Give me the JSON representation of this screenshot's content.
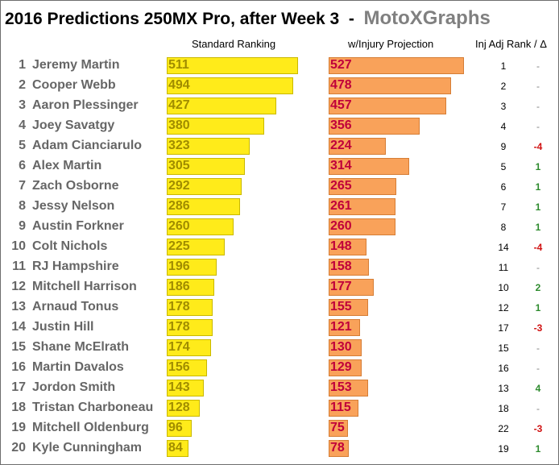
{
  "title": "2016 Predictions 250MX Pro, after Week 3",
  "title_separator": "-",
  "brand": "MotoXGraphs",
  "colors": {
    "standard_bar": "#ffeb1a",
    "standard_text": "#a08c00",
    "injury_bar": "#f9a25a",
    "injury_text": "#c0003a",
    "delta_up": "#2e8b2e",
    "delta_down": "#d01010",
    "delta_none": "#808080",
    "name_text": "#666666"
  },
  "chart_data": {
    "type": "bar",
    "orientation": "horizontal",
    "title": "2016 Predictions 250MX Pro, after Week 3",
    "columns": [
      "Standard Ranking",
      "w/Injury Projection",
      "Inj Adj Rank / Δ"
    ],
    "categories": [
      "Jeremy Martin",
      "Cooper Webb",
      "Aaron Plessinger",
      "Joey Savatgy",
      "Adam Cianciarulo",
      "Alex Martin",
      "Zach Osborne",
      "Jessy Nelson",
      "Austin Forkner",
      "Colt Nichols",
      "RJ Hampshire",
      "Mitchell Harrison",
      "Arnaud Tonus",
      "Justin Hill",
      "Shane McElrath",
      "Martin Davalos",
      "Jordon Smith",
      "Tristan Charboneau",
      "Mitchell Oldenburg",
      "Kyle Cunningham"
    ],
    "ranks": [
      "1",
      "2",
      "3",
      "4",
      "5",
      "6",
      "7",
      "8",
      "9",
      "10",
      "11",
      "12",
      "13",
      "14",
      "15",
      "16",
      "17",
      "18",
      "19",
      "20"
    ],
    "series": [
      {
        "name": "Standard Ranking",
        "values": [
          511,
          494,
          427,
          380,
          323,
          305,
          292,
          286,
          260,
          225,
          196,
          186,
          178,
          178,
          174,
          156,
          143,
          128,
          96,
          84
        ]
      },
      {
        "name": "w/Injury Projection",
        "values": [
          527,
          478,
          457,
          356,
          224,
          314,
          265,
          261,
          260,
          148,
          158,
          177,
          155,
          121,
          130,
          129,
          153,
          115,
          75,
          78
        ]
      }
    ],
    "inj_adj_rank": [
      "1",
      "2",
      "3",
      "4",
      "9",
      "5",
      "6",
      "7",
      "8",
      "14",
      "11",
      "10",
      "12",
      "17",
      "15",
      "16",
      "13",
      "18",
      "22",
      "19"
    ],
    "rank_delta": [
      "-",
      "-",
      "-",
      "-",
      "-4",
      "1",
      "1",
      "1",
      "1",
      "-4",
      "-",
      "2",
      "1",
      "-3",
      "-",
      "-",
      "4",
      "-",
      "-3",
      "1"
    ],
    "xlim": [
      0,
      540
    ],
    "grid": false,
    "legend": "none"
  }
}
